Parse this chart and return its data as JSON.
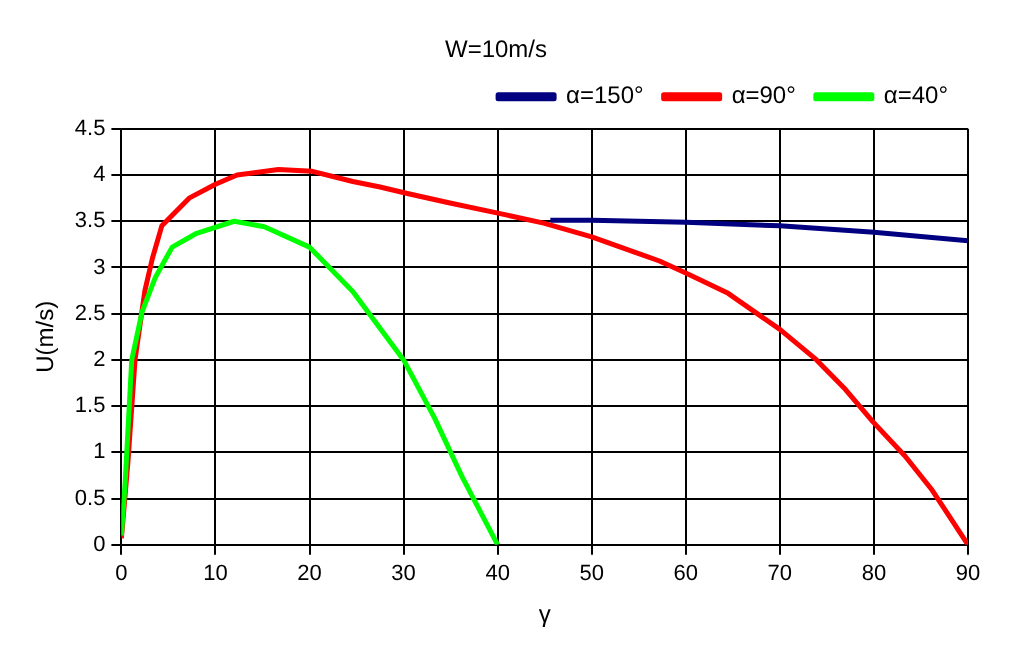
{
  "chart_data": {
    "type": "line",
    "title": "W=10m/s",
    "xlabel": "γ",
    "ylabel": "U(m/s)",
    "xlim": [
      0,
      90
    ],
    "xticks": [
      0,
      10,
      20,
      30,
      40,
      50,
      60,
      70,
      80,
      90
    ],
    "ylim": [
      0,
      4.5
    ],
    "yticks": [
      0,
      0.5,
      1,
      1.5,
      2,
      2.5,
      3,
      3.5,
      4,
      4.5
    ],
    "grid": true,
    "legend": "top right",
    "marker": "none",
    "line_style": "solid",
    "series": [
      {
        "name": "α=150°",
        "color": "#000080",
        "x": [
          45.6,
          50,
          60,
          70,
          80,
          90
        ],
        "values": [
          3.51,
          3.51,
          3.49,
          3.45,
          3.38,
          3.29
        ]
      },
      {
        "name": "α=90°",
        "color": "#ff0000",
        "x": [
          0,
          0.7,
          1.45,
          2.5,
          3.3,
          4.3,
          7.2,
          10,
          12.3,
          16.7,
          20.3,
          24.6,
          27.5,
          30.4,
          34.8,
          39.9,
          44.9,
          50,
          57.2,
          60,
          64.5,
          70,
          73.9,
          76.8,
          79.9,
          83.3,
          86.2,
          90
        ],
        "values": [
          0.07,
          0.9,
          2.0,
          2.75,
          3.1,
          3.45,
          3.75,
          3.9,
          4.0,
          4.06,
          4.04,
          3.93,
          3.87,
          3.8,
          3.7,
          3.59,
          3.48,
          3.33,
          3.07,
          2.94,
          2.72,
          2.33,
          2.0,
          1.7,
          1.33,
          0.96,
          0.59,
          0
        ]
      },
      {
        "name": "α=40°",
        "color": "#00ff00",
        "x": [
          0,
          0.4,
          1.1,
          2.2,
          3.6,
          5.4,
          8,
          12,
          15.2,
          20,
          24.6,
          30,
          33.3,
          36.2,
          40
        ],
        "values": [
          0.1,
          0.67,
          2.0,
          2.52,
          2.89,
          3.22,
          3.37,
          3.5,
          3.44,
          3.22,
          2.74,
          2.0,
          1.37,
          0.74,
          0
        ]
      }
    ]
  }
}
